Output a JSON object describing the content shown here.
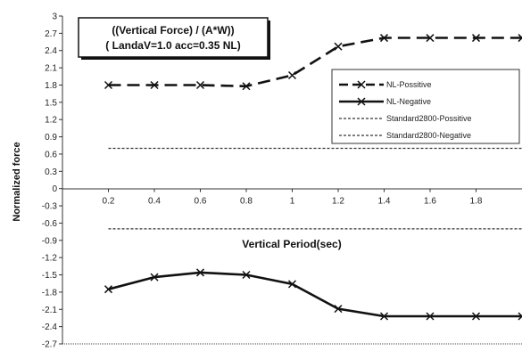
{
  "chart_data": {
    "type": "line",
    "title_lines": [
      "((Vertical Force) / (A*W))",
      "( LandaV=1.0 acc=0.35 NL)"
    ],
    "xlabel": "Vertical Period(sec)",
    "ylabel": "Normalized force",
    "xlim": [
      0,
      2.0
    ],
    "ylim": [
      -2.7,
      3.0
    ],
    "x_ticks": [
      0.2,
      0.4,
      0.6,
      0.8,
      1,
      1.2,
      1.4,
      1.6,
      1.8
    ],
    "y_ticks": [
      3,
      2.7,
      2.4,
      2.1,
      1.8,
      1.5,
      1.2,
      0.9,
      0.6,
      0.3,
      0,
      -0.3,
      -0.6,
      -0.9,
      -1.2,
      -1.5,
      -1.8,
      -2.1,
      -2.4,
      -2.7
    ],
    "y_tick_labels": [
      "3",
      "2.7",
      "2.4",
      "2.1",
      "1.8",
      "1.5",
      "1.2",
      "0.9",
      "0.6",
      "0.3",
      "0",
      "-0.3",
      "-0.6",
      "-0.9",
      "-1.2",
      "-1.5",
      "-1.8",
      "-2.1",
      "-2.4",
      "-2.7"
    ],
    "legend_position": "upper-right",
    "series": [
      {
        "name": "NL-Possitive",
        "style": "dash",
        "marker": "x",
        "color": "#111111",
        "x": [
          0.2,
          0.4,
          0.6,
          0.8,
          1.0,
          1.2,
          1.4,
          1.6,
          1.8,
          2.0
        ],
        "y": [
          1.8,
          1.8,
          1.8,
          1.78,
          1.97,
          2.47,
          2.62,
          2.62,
          2.62,
          2.62
        ]
      },
      {
        "name": "NL-Negative",
        "style": "solid",
        "marker": "x",
        "color": "#111111",
        "x": [
          0.2,
          0.4,
          0.6,
          0.8,
          1.0,
          1.2,
          1.4,
          1.6,
          1.8,
          2.0
        ],
        "y": [
          -1.75,
          -1.54,
          -1.46,
          -1.5,
          -1.66,
          -2.09,
          -2.22,
          -2.22,
          -2.22,
          -2.22
        ]
      },
      {
        "name": "Standard2800-Possitive",
        "style": "dotted",
        "marker": "none",
        "color": "#333333",
        "x": [
          0.2,
          2.0
        ],
        "y": [
          0.7,
          0.7
        ]
      },
      {
        "name": "Standard2800-Negative",
        "style": "dotted",
        "marker": "none",
        "color": "#333333",
        "x": [
          0.2,
          2.0
        ],
        "y": [
          -0.7,
          -0.7
        ]
      }
    ]
  }
}
